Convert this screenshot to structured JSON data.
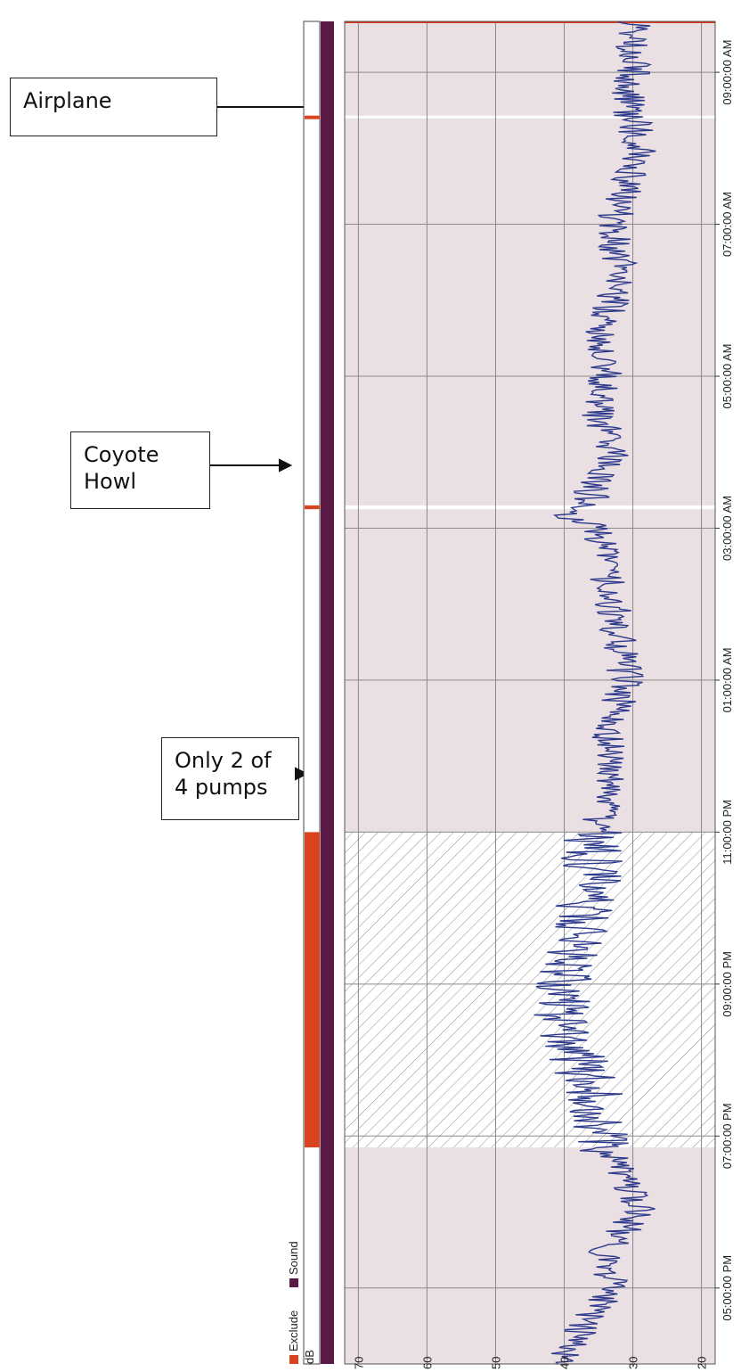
{
  "annotations": [
    {
      "id": "airplane",
      "text": "Airplane"
    },
    {
      "id": "coyote",
      "text": "Coyote\nHowl"
    },
    {
      "id": "pumps",
      "text": "Only 2 of\n4 pumps"
    }
  ],
  "legend": {
    "exclude_label": "Exclude",
    "sound_label": "Sound",
    "exclude_color": "#d9431f",
    "sound_color": "#5a1a46"
  },
  "colors": {
    "plot_bg": "#eadfe2",
    "line": "#2d3a8c",
    "grid": "#8a8a8a",
    "axis_top": "#d93a1f"
  },
  "chart_data": {
    "type": "line",
    "title": "",
    "ylabel": "dB",
    "yticks": [
      70,
      60,
      50,
      40,
      30,
      20
    ],
    "ylim": [
      72,
      18
    ],
    "xlim": [
      "4:00 PM",
      "9:40 AM"
    ],
    "xticks": [
      "05:00:00 PM",
      "07:00:00 PM",
      "09:00:00 PM",
      "11:00:00 PM",
      "01:00:00 AM",
      "03:00:00 AM",
      "05:00:00 AM",
      "07:00:00 AM",
      "09:00:00 AM"
    ],
    "xtick_hours": [
      17,
      19,
      21,
      23,
      25,
      27,
      29,
      31,
      33
    ],
    "x_hours": [
      16.0,
      16.5,
      17.0,
      17.5,
      18.0,
      18.5,
      19.0,
      19.5,
      20.0,
      20.5,
      21.0,
      21.5,
      22.0,
      22.5,
      23.0,
      23.5,
      24.0,
      24.5,
      25.0,
      25.5,
      26.0,
      26.5,
      27.0,
      27.15,
      27.3,
      27.5,
      28.0,
      28.5,
      29.0,
      29.5,
      30.0,
      30.5,
      31.0,
      31.5,
      32.0,
      32.4,
      32.5,
      33.0,
      33.5
    ],
    "y_db": [
      41,
      37,
      33,
      34,
      29,
      32,
      35,
      35,
      38,
      41,
      40,
      38,
      37,
      36,
      36,
      33,
      34,
      33,
      31,
      32,
      33,
      34,
      35,
      40,
      36,
      36,
      33,
      35,
      34,
      35,
      33,
      32,
      33,
      31,
      29,
      30,
      31,
      30,
      30
    ],
    "exclusions": [
      {
        "label": "Only 2 of 4 pumps",
        "start_hours": 18.85,
        "end_hours": 23.0
      },
      {
        "label": "Coyote Howl",
        "start_hours": 27.25,
        "end_hours": 27.3
      },
      {
        "label": "Airplane",
        "start_hours": 32.4,
        "end_hours": 32.43
      }
    ],
    "grid": true,
    "legend_position": "bottom-left"
  }
}
